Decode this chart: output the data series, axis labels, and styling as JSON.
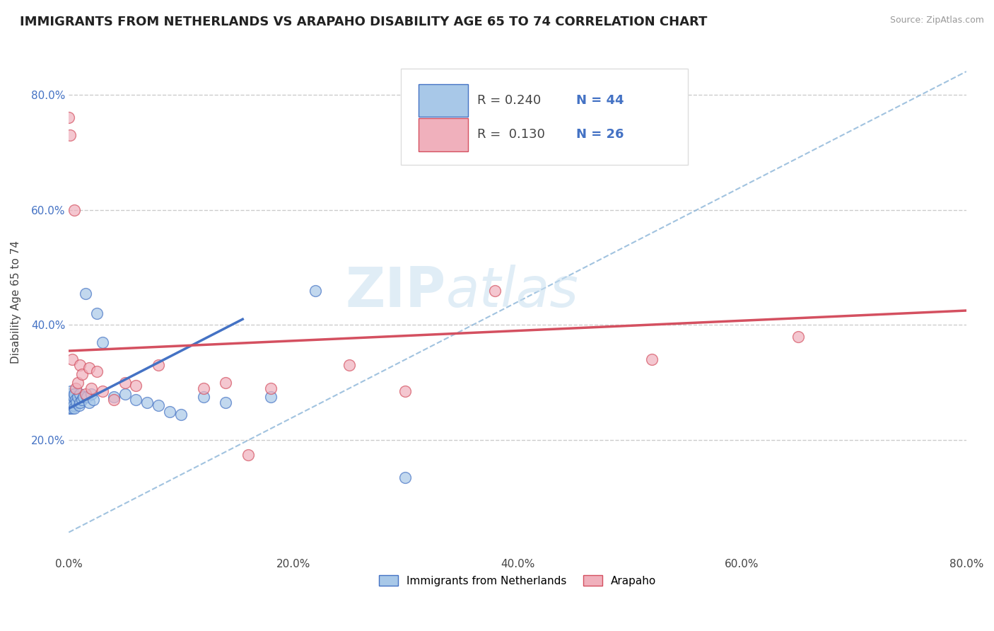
{
  "title": "IMMIGRANTS FROM NETHERLANDS VS ARAPAHO DISABILITY AGE 65 TO 74 CORRELATION CHART",
  "source": "Source: ZipAtlas.com",
  "ylabel": "Disability Age 65 to 74",
  "xlim": [
    0,
    0.8
  ],
  "ylim": [
    0.0,
    0.88
  ],
  "xticks": [
    0.0,
    0.2,
    0.4,
    0.6,
    0.8
  ],
  "yticks": [
    0.2,
    0.4,
    0.6,
    0.8
  ],
  "ytick_labels": [
    "20.0%",
    "40.0%",
    "60.0%",
    "80.0%"
  ],
  "xtick_labels": [
    "0.0%",
    "20.0%",
    "40.0%",
    "60.0%",
    "80.0%"
  ],
  "legend_r_blue": "R = 0.240",
  "legend_n_blue": "N = 44",
  "legend_r_pink": "R =  0.130",
  "legend_n_pink": "N = 26",
  "blue_scatter_x": [
    0.0,
    0.0,
    0.0,
    0.001,
    0.001,
    0.001,
    0.001,
    0.002,
    0.002,
    0.002,
    0.003,
    0.003,
    0.003,
    0.004,
    0.004,
    0.005,
    0.005,
    0.006,
    0.007,
    0.008,
    0.009,
    0.01,
    0.01,
    0.012,
    0.013,
    0.015,
    0.016,
    0.018,
    0.02,
    0.022,
    0.025,
    0.03,
    0.04,
    0.05,
    0.06,
    0.07,
    0.08,
    0.09,
    0.1,
    0.12,
    0.14,
    0.18,
    0.22,
    0.3
  ],
  "blue_scatter_y": [
    0.265,
    0.27,
    0.255,
    0.28,
    0.27,
    0.265,
    0.255,
    0.275,
    0.26,
    0.285,
    0.27,
    0.255,
    0.265,
    0.275,
    0.26,
    0.28,
    0.255,
    0.27,
    0.265,
    0.275,
    0.26,
    0.28,
    0.265,
    0.27,
    0.275,
    0.455,
    0.275,
    0.265,
    0.28,
    0.27,
    0.42,
    0.37,
    0.275,
    0.28,
    0.27,
    0.265,
    0.26,
    0.25,
    0.245,
    0.275,
    0.265,
    0.275,
    0.46,
    0.135
  ],
  "pink_scatter_x": [
    0.0,
    0.001,
    0.003,
    0.005,
    0.006,
    0.008,
    0.01,
    0.012,
    0.015,
    0.018,
    0.02,
    0.025,
    0.03,
    0.04,
    0.05,
    0.06,
    0.08,
    0.12,
    0.14,
    0.16,
    0.18,
    0.25,
    0.3,
    0.38,
    0.52,
    0.65
  ],
  "pink_scatter_y": [
    0.76,
    0.73,
    0.34,
    0.6,
    0.29,
    0.3,
    0.33,
    0.315,
    0.28,
    0.325,
    0.29,
    0.32,
    0.285,
    0.27,
    0.3,
    0.295,
    0.33,
    0.29,
    0.3,
    0.175,
    0.29,
    0.33,
    0.285,
    0.46,
    0.34,
    0.38
  ],
  "blue_trend_x": [
    0.0,
    0.155
  ],
  "blue_trend_y": [
    0.255,
    0.41
  ],
  "pink_trend_x": [
    0.0,
    0.8
  ],
  "pink_trend_y": [
    0.355,
    0.425
  ],
  "dashed_line_x": [
    0.0,
    0.8
  ],
  "dashed_line_y": [
    0.04,
    0.84
  ],
  "blue_color": "#a8c8e8",
  "pink_color": "#f0b0bc",
  "blue_line_color": "#4472c4",
  "pink_line_color": "#d45060",
  "dashed_color": "#8ab4d8",
  "bg_color": "#ffffff",
  "watermark_zip": "ZIP",
  "watermark_atlas": "atlas",
  "title_fontsize": 13,
  "label_fontsize": 11,
  "tick_fontsize": 11,
  "legend_label_blue": "Immigrants from Netherlands",
  "legend_label_pink": "Arapaho"
}
